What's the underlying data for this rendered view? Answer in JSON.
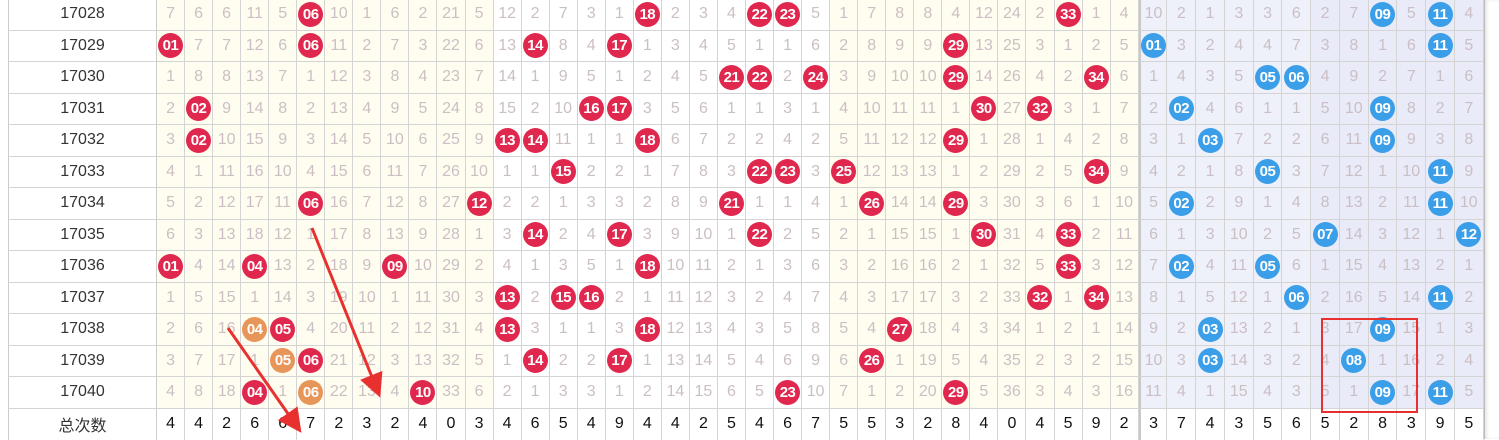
{
  "colors": {
    "red_ball": "#e0284f",
    "blue_ball": "#3a9ee8",
    "orange_ball": "#e8955a",
    "annotation": "#e8312f"
  },
  "rows": [
    {
      "issue": "17028",
      "red": [
        "7",
        "6",
        "6",
        "11",
        "5",
        "06",
        "10",
        "1",
        "6",
        "2",
        "21",
        "5",
        "12",
        "2",
        "7",
        "3",
        "1",
        "18",
        "2",
        "3",
        "4",
        "22",
        "23",
        "5",
        "1",
        "7",
        "8",
        "8",
        "4",
        "12",
        "24",
        "2",
        "33",
        "1",
        "4"
      ],
      "red_balls": [
        6,
        18,
        22,
        23,
        33
      ],
      "orange_balls": [],
      "blue": [
        "10",
        "2",
        "1",
        "3",
        "3",
        "6",
        "2",
        "7",
        "09",
        "5",
        "11",
        "4"
      ],
      "blue_balls": [
        9,
        11
      ]
    },
    {
      "issue": "17029",
      "red": [
        "01",
        "7",
        "7",
        "12",
        "6",
        "06",
        "11",
        "2",
        "7",
        "3",
        "22",
        "6",
        "13",
        "14",
        "8",
        "4",
        "17",
        "1",
        "3",
        "4",
        "5",
        "1",
        "1",
        "6",
        "2",
        "8",
        "9",
        "9",
        "29",
        "13",
        "25",
        "3",
        "1",
        "2",
        "5"
      ],
      "red_balls": [
        1,
        6,
        14,
        17,
        29
      ],
      "orange_balls": [],
      "blue": [
        "01",
        "3",
        "2",
        "4",
        "4",
        "7",
        "3",
        "8",
        "1",
        "6",
        "11",
        "5"
      ],
      "blue_balls": [
        1,
        11
      ]
    },
    {
      "issue": "17030",
      "red": [
        "1",
        "8",
        "8",
        "13",
        "7",
        "1",
        "12",
        "3",
        "8",
        "4",
        "23",
        "7",
        "14",
        "1",
        "9",
        "5",
        "1",
        "2",
        "4",
        "5",
        "21",
        "22",
        "2",
        "24",
        "3",
        "9",
        "10",
        "10",
        "29",
        "14",
        "26",
        "4",
        "2",
        "34",
        "6"
      ],
      "red_balls": [
        21,
        22,
        24,
        29,
        34
      ],
      "orange_balls": [],
      "blue": [
        "1",
        "4",
        "3",
        "5",
        "05",
        "06",
        "4",
        "9",
        "2",
        "7",
        "1",
        "6"
      ],
      "blue_balls": [
        5,
        6
      ]
    },
    {
      "issue": "17031",
      "red": [
        "2",
        "02",
        "9",
        "14",
        "8",
        "2",
        "13",
        "4",
        "9",
        "5",
        "24",
        "8",
        "15",
        "2",
        "10",
        "16",
        "17",
        "3",
        "5",
        "6",
        "1",
        "1",
        "3",
        "1",
        "4",
        "10",
        "11",
        "11",
        "1",
        "30",
        "27",
        "32",
        "3",
        "1",
        "7"
      ],
      "red_balls": [
        2,
        16,
        17,
        30,
        32
      ],
      "orange_balls": [],
      "blue": [
        "2",
        "02",
        "4",
        "6",
        "1",
        "1",
        "5",
        "10",
        "09",
        "8",
        "2",
        "7"
      ],
      "blue_balls": [
        2,
        9
      ]
    },
    {
      "issue": "17032",
      "red": [
        "3",
        "02",
        "10",
        "15",
        "9",
        "3",
        "14",
        "5",
        "10",
        "6",
        "25",
        "9",
        "13",
        "14",
        "11",
        "1",
        "1",
        "18",
        "6",
        "7",
        "2",
        "2",
        "4",
        "2",
        "5",
        "11",
        "12",
        "12",
        "29",
        "1",
        "28",
        "1",
        "4",
        "2",
        "8"
      ],
      "red_balls": [
        2,
        13,
        14,
        18,
        29
      ],
      "orange_balls": [],
      "blue": [
        "3",
        "1",
        "03",
        "7",
        "2",
        "2",
        "6",
        "11",
        "09",
        "9",
        "3",
        "8"
      ],
      "blue_balls": [
        3,
        9
      ]
    },
    {
      "issue": "17033",
      "red": [
        "4",
        "1",
        "11",
        "16",
        "10",
        "4",
        "15",
        "6",
        "11",
        "7",
        "26",
        "10",
        "1",
        "1",
        "15",
        "2",
        "2",
        "1",
        "7",
        "8",
        "3",
        "22",
        "23",
        "3",
        "25",
        "12",
        "13",
        "13",
        "1",
        "2",
        "29",
        "2",
        "5",
        "34",
        "9"
      ],
      "red_balls": [
        15,
        22,
        23,
        25,
        34
      ],
      "orange_balls": [],
      "blue": [
        "4",
        "2",
        "1",
        "8",
        "05",
        "3",
        "7",
        "12",
        "1",
        "10",
        "11",
        "9"
      ],
      "blue_balls": [
        5,
        11
      ]
    },
    {
      "issue": "17034",
      "red": [
        "5",
        "2",
        "12",
        "17",
        "11",
        "06",
        "16",
        "7",
        "12",
        "8",
        "27",
        "12",
        "2",
        "2",
        "1",
        "3",
        "3",
        "2",
        "8",
        "9",
        "21",
        "1",
        "1",
        "4",
        "1",
        "26",
        "14",
        "14",
        "29",
        "3",
        "30",
        "3",
        "6",
        "1",
        "10"
      ],
      "red_balls": [
        6,
        12,
        21,
        26,
        29
      ],
      "orange_balls": [],
      "blue": [
        "5",
        "02",
        "2",
        "9",
        "1",
        "4",
        "8",
        "13",
        "2",
        "11",
        "11",
        "10"
      ],
      "blue_balls": [
        2,
        11
      ]
    },
    {
      "issue": "17035",
      "red": [
        "6",
        "3",
        "13",
        "18",
        "12",
        "1",
        "17",
        "8",
        "13",
        "9",
        "28",
        "1",
        "3",
        "14",
        "2",
        "4",
        "17",
        "3",
        "9",
        "10",
        "1",
        "22",
        "2",
        "5",
        "2",
        "1",
        "15",
        "15",
        "1",
        "30",
        "31",
        "4",
        "33",
        "2",
        "11"
      ],
      "red_balls": [
        14,
        17,
        22,
        30,
        33
      ],
      "orange_balls": [],
      "blue": [
        "6",
        "1",
        "3",
        "10",
        "2",
        "5",
        "07",
        "14",
        "3",
        "12",
        "1",
        "12"
      ],
      "blue_balls": [
        7,
        12
      ]
    },
    {
      "issue": "17036",
      "red": [
        "01",
        "4",
        "14",
        "04",
        "13",
        "2",
        "18",
        "9",
        "09",
        "10",
        "29",
        "2",
        "4",
        "1",
        "3",
        "5",
        "1",
        "18",
        "10",
        "11",
        "2",
        "1",
        "3",
        "6",
        "3",
        "2",
        "16",
        "16",
        "2",
        "1",
        "32",
        "5",
        "33",
        "3",
        "12"
      ],
      "red_balls": [
        1,
        4,
        9,
        18,
        33
      ],
      "orange_balls": [],
      "blue": [
        "7",
        "02",
        "4",
        "11",
        "05",
        "6",
        "1",
        "15",
        "4",
        "13",
        "2",
        "1"
      ],
      "blue_balls": [
        2,
        5
      ]
    },
    {
      "issue": "17037",
      "red": [
        "1",
        "5",
        "15",
        "1",
        "14",
        "3",
        "19",
        "10",
        "1",
        "11",
        "30",
        "3",
        "13",
        "2",
        "15",
        "16",
        "2",
        "1",
        "11",
        "12",
        "3",
        "2",
        "4",
        "7",
        "4",
        "3",
        "17",
        "17",
        "3",
        "2",
        "33",
        "32",
        "1",
        "34",
        "13"
      ],
      "red_balls": [
        13,
        15,
        16,
        32,
        34
      ],
      "orange_balls": [],
      "blue": [
        "8",
        "1",
        "5",
        "12",
        "1",
        "06",
        "2",
        "16",
        "5",
        "14",
        "11",
        "2"
      ],
      "blue_balls": [
        6,
        11
      ]
    },
    {
      "issue": "17038",
      "red": [
        "2",
        "6",
        "16",
        "04",
        "05",
        "4",
        "20",
        "11",
        "2",
        "12",
        "31",
        "4",
        "13",
        "3",
        "1",
        "1",
        "3",
        "18",
        "12",
        "13",
        "4",
        "3",
        "5",
        "8",
        "5",
        "4",
        "27",
        "18",
        "4",
        "3",
        "34",
        "1",
        "2",
        "1",
        "14"
      ],
      "red_balls": [
        5,
        13,
        18,
        27
      ],
      "orange_balls": [
        4
      ],
      "blue": [
        "9",
        "2",
        "03",
        "13",
        "2",
        "1",
        "3",
        "17",
        "09",
        "15",
        "1",
        "3"
      ],
      "blue_balls": [
        3,
        9
      ]
    },
    {
      "issue": "17039",
      "red": [
        "3",
        "7",
        "17",
        "1",
        "05",
        "06",
        "21",
        "12",
        "3",
        "13",
        "32",
        "5",
        "1",
        "14",
        "2",
        "2",
        "17",
        "1",
        "13",
        "14",
        "5",
        "4",
        "6",
        "9",
        "6",
        "26",
        "1",
        "19",
        "5",
        "4",
        "35",
        "2",
        "3",
        "2",
        "15"
      ],
      "red_balls": [
        6,
        14,
        17,
        26
      ],
      "orange_balls": [
        5
      ],
      "blue": [
        "10",
        "3",
        "03",
        "14",
        "3",
        "2",
        "4",
        "08",
        "1",
        "16",
        "2",
        "4"
      ],
      "blue_balls": [
        3,
        8
      ]
    },
    {
      "issue": "17040",
      "red": [
        "4",
        "8",
        "18",
        "04",
        "1",
        "06",
        "22",
        "13",
        "4",
        "10",
        "33",
        "6",
        "2",
        "1",
        "3",
        "3",
        "1",
        "2",
        "14",
        "15",
        "6",
        "5",
        "23",
        "10",
        "7",
        "1",
        "2",
        "20",
        "29",
        "5",
        "36",
        "3",
        "4",
        "3",
        "16"
      ],
      "red_balls": [
        4,
        10,
        23,
        29
      ],
      "orange_balls": [
        6
      ],
      "blue": [
        "11",
        "4",
        "1",
        "15",
        "4",
        "3",
        "5",
        "1",
        "09",
        "17",
        "11",
        "5"
      ],
      "blue_balls": [
        9,
        11
      ]
    }
  ],
  "footer": {
    "label": "总次数",
    "red": [
      "4",
      "4",
      "2",
      "6",
      "6",
      "7",
      "2",
      "3",
      "2",
      "4",
      "0",
      "3",
      "4",
      "6",
      "5",
      "4",
      "9",
      "4",
      "4",
      "2",
      "5",
      "4",
      "6",
      "7",
      "5",
      "5",
      "3",
      "2",
      "8",
      "4",
      "0",
      "4",
      "5",
      "9",
      "2"
    ],
    "blue": [
      "3",
      "7",
      "4",
      "3",
      "5",
      "6",
      "5",
      "2",
      "8",
      "3",
      "9",
      "5"
    ]
  }
}
